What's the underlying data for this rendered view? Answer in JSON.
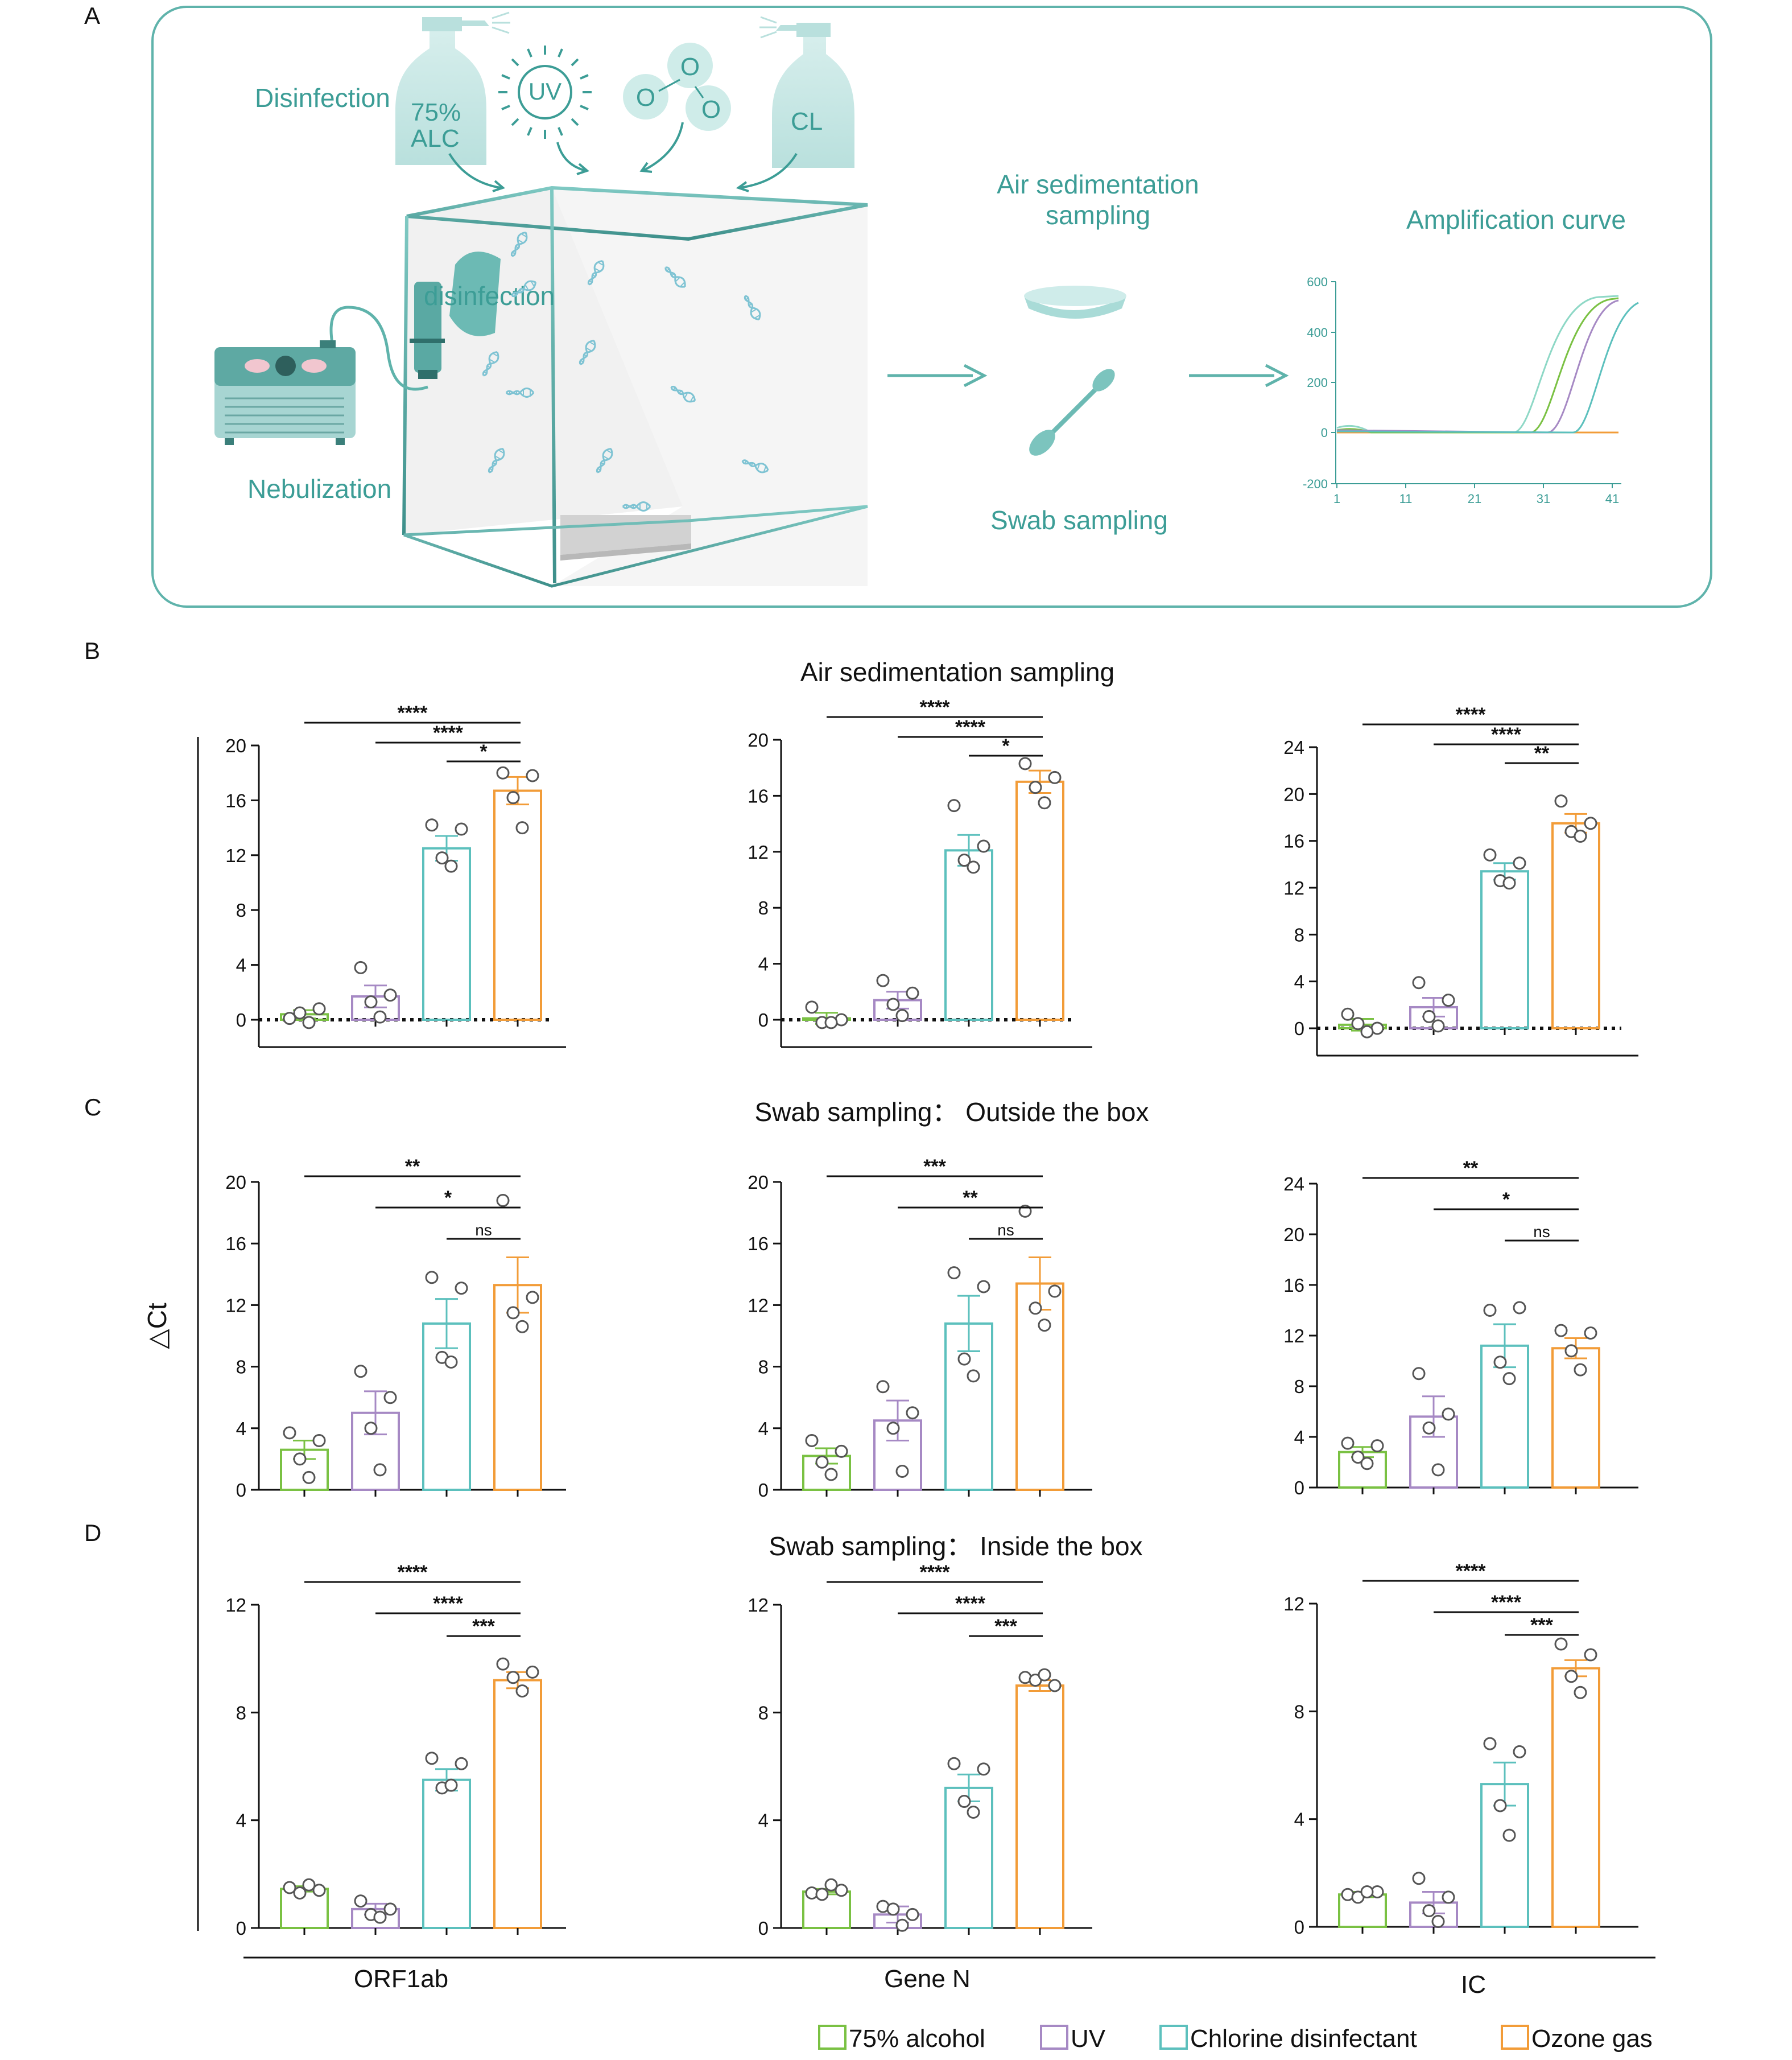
{
  "panel_a": {
    "label": "A",
    "disinfection": "Disinfection",
    "alc_line1": "75%",
    "alc_line2": "ALC",
    "uv": "UV",
    "ozone_o1": "O",
    "ozone_o2": "O",
    "ozone_o3": "O",
    "cl": "CL",
    "box_label": "disinfection",
    "nebulization": "Nebulization",
    "air_line1": "Air sedimentation",
    "air_line2": "sampling",
    "swab": "Swab sampling",
    "amp_title": "Amplification curve",
    "amp_yticks": [
      "600",
      "400",
      "200",
      "0",
      "-200"
    ],
    "amp_xticks": [
      "1",
      "11",
      "21",
      "31",
      "41"
    ]
  },
  "labels": {
    "B": "B",
    "C": "C",
    "D": "D",
    "title_B": "Air sedimentation sampling",
    "title_C": "Swab sampling： Outside the box",
    "title_D": "Swab sampling： Inside the box",
    "ylabel": "△Ct",
    "col1": "ORF1ab",
    "col2": "Gene N",
    "col3": "IC"
  },
  "legend": [
    {
      "label": "75% alcohol",
      "color": "#7ac143"
    },
    {
      "label": "UV",
      "color": "#a689c4"
    },
    {
      "label": "Chlorine disinfectant",
      "color": "#5cc0bd"
    },
    {
      "label": "Ozone gas",
      "color": "#f29c38"
    }
  ],
  "chart_data": [
    {
      "id": "B-ORF1ab",
      "type": "bar",
      "ylim": [
        0,
        20
      ],
      "yticks": [
        0,
        4,
        8,
        12,
        16,
        20
      ],
      "zero_line": true,
      "values": [
        0.4,
        1.7,
        12.5,
        16.7
      ],
      "err": [
        0.3,
        0.8,
        0.9,
        1.0
      ],
      "points": [
        [
          0.1,
          0.8,
          0.5,
          -0.2
        ],
        [
          3.8,
          1.8,
          1.3,
          0.2
        ],
        [
          14.2,
          13.9,
          11.8,
          11.2
        ],
        [
          18.0,
          17.8,
          16.2,
          14.0
        ]
      ],
      "sig": [
        "****",
        "****",
        "*"
      ]
    },
    {
      "id": "B-GeneN",
      "type": "bar",
      "ylim": [
        0,
        20
      ],
      "yticks": [
        0,
        4,
        8,
        12,
        16,
        20
      ],
      "zero_line": true,
      "values": [
        0.1,
        1.4,
        12.1,
        17.0
      ],
      "err": [
        0.4,
        0.6,
        1.1,
        0.8
      ],
      "points": [
        [
          0.9,
          0.0,
          -0.2,
          -0.2
        ],
        [
          2.8,
          1.9,
          1.1,
          0.3
        ],
        [
          15.3,
          12.4,
          11.4,
          10.9
        ],
        [
          18.3,
          17.3,
          16.6,
          15.5
        ]
      ],
      "sig": [
        "****",
        "****",
        "*"
      ]
    },
    {
      "id": "B-IC",
      "type": "bar",
      "ylim": [
        0,
        24
      ],
      "yticks": [
        0,
        4,
        8,
        12,
        16,
        20,
        24
      ],
      "zero_line": true,
      "values": [
        0.3,
        1.8,
        13.4,
        17.5
      ],
      "err": [
        0.5,
        0.8,
        0.7,
        0.8
      ],
      "points": [
        [
          1.2,
          0.0,
          0.4,
          -0.3
        ],
        [
          3.9,
          2.4,
          1.0,
          0.2
        ],
        [
          14.8,
          14.1,
          12.6,
          12.4
        ],
        [
          19.4,
          17.5,
          16.8,
          16.4
        ]
      ],
      "sig": [
        "****",
        "****",
        "**"
      ]
    },
    {
      "id": "C-ORF1ab",
      "type": "bar",
      "ylim": [
        0,
        20
      ],
      "yticks": [
        0,
        4,
        8,
        12,
        16,
        20
      ],
      "values": [
        2.6,
        5.0,
        10.8,
        13.3
      ],
      "err": [
        0.6,
        1.4,
        1.6,
        1.8
      ],
      "points": [
        [
          3.7,
          3.2,
          2.0,
          0.8
        ],
        [
          7.7,
          6.0,
          4.0,
          1.3
        ],
        [
          13.8,
          13.1,
          8.6,
          8.3
        ],
        [
          18.8,
          12.5,
          11.5,
          10.6
        ]
      ],
      "sig": [
        "**",
        "*",
        "ns"
      ]
    },
    {
      "id": "C-GeneN",
      "type": "bar",
      "ylim": [
        0,
        20
      ],
      "yticks": [
        0,
        4,
        8,
        12,
        16,
        20
      ],
      "values": [
        2.2,
        4.5,
        10.8,
        13.4
      ],
      "err": [
        0.5,
        1.3,
        1.8,
        1.7
      ],
      "points": [
        [
          3.2,
          2.5,
          1.8,
          1.0
        ],
        [
          6.7,
          5.0,
          4.0,
          1.2
        ],
        [
          14.1,
          13.2,
          8.5,
          7.4
        ],
        [
          18.1,
          12.9,
          11.8,
          10.7
        ]
      ],
      "sig": [
        "***",
        "**",
        "ns"
      ]
    },
    {
      "id": "C-IC",
      "type": "bar",
      "ylim": [
        0,
        24
      ],
      "yticks": [
        0,
        4,
        8,
        12,
        16,
        20,
        24
      ],
      "values": [
        2.8,
        5.6,
        11.2,
        11.0
      ],
      "err": [
        0.4,
        1.6,
        1.7,
        0.8
      ],
      "points": [
        [
          3.5,
          3.3,
          2.4,
          1.9
        ],
        [
          9.0,
          5.8,
          4.7,
          1.4
        ],
        [
          14.0,
          14.2,
          9.9,
          8.6
        ],
        [
          12.4,
          12.2,
          10.8,
          9.3
        ]
      ],
      "sig": [
        "**",
        "*",
        "ns"
      ]
    },
    {
      "id": "D-ORF1ab",
      "type": "bar",
      "ylim": [
        0,
        12
      ],
      "yticks": [
        0,
        4,
        8,
        12
      ],
      "values": [
        1.45,
        0.7,
        5.5,
        9.2
      ],
      "err": [
        0.1,
        0.2,
        0.4,
        0.3
      ],
      "points": [
        [
          1.5,
          1.4,
          1.3,
          1.6
        ],
        [
          1.0,
          0.7,
          0.5,
          0.4
        ],
        [
          6.3,
          6.1,
          5.2,
          5.3
        ],
        [
          9.8,
          9.5,
          9.3,
          8.8
        ]
      ],
      "sig": [
        "****",
        "****",
        "***"
      ]
    },
    {
      "id": "D-GeneN",
      "type": "bar",
      "ylim": [
        0,
        12
      ],
      "yticks": [
        0,
        4,
        8,
        12
      ],
      "values": [
        1.35,
        0.5,
        5.2,
        9.0
      ],
      "err": [
        0.1,
        0.3,
        0.5,
        0.2
      ],
      "points": [
        [
          1.3,
          1.4,
          1.25,
          1.6
        ],
        [
          0.8,
          0.5,
          0.7,
          0.1
        ],
        [
          6.1,
          5.9,
          4.7,
          4.3
        ],
        [
          9.3,
          9.0,
          9.2,
          9.4
        ]
      ],
      "sig": [
        "****",
        "****",
        "***"
      ]
    },
    {
      "id": "D-IC",
      "type": "bar",
      "ylim": [
        0,
        12
      ],
      "yticks": [
        0,
        4,
        8,
        12
      ],
      "values": [
        1.2,
        0.9,
        5.3,
        9.6
      ],
      "err": [
        0.1,
        0.4,
        0.8,
        0.3
      ],
      "points": [
        [
          1.2,
          1.3,
          1.1,
          1.3
        ],
        [
          1.8,
          1.1,
          0.6,
          0.2
        ],
        [
          6.8,
          6.5,
          4.5,
          3.4
        ],
        [
          10.5,
          10.1,
          9.3,
          8.7
        ]
      ],
      "sig": [
        "****",
        "****",
        "***"
      ]
    }
  ]
}
